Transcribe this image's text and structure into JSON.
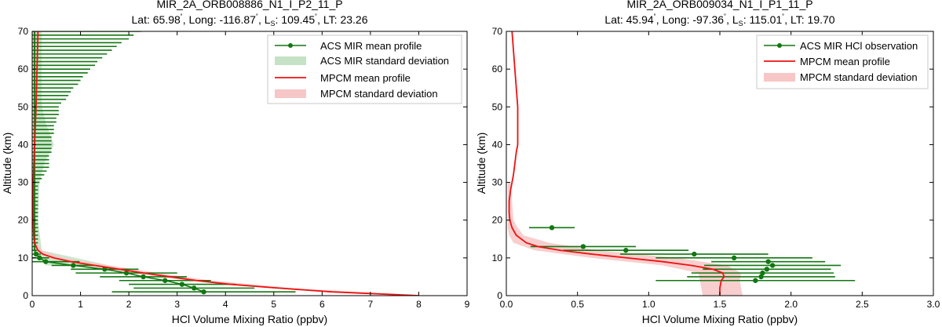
{
  "colors": {
    "obs": "#117711",
    "obs_band": "#c6e2c6",
    "model": "#ee1111",
    "model_band": "#f7c6c6"
  },
  "chart_data": [
    {
      "type": "line",
      "title": "MIR_2A_ORB008886_N1_I_P2_11_P",
      "subtitle": {
        "lat": "Lat: 65.98",
        "long": ", Long: -116.87",
        "ls_label": ", L",
        "ls_sub": "S",
        "ls_value": ": 109.45",
        "lt": ", LT: 23.26"
      },
      "xlabel": "HCl Volume Mixing Ratio (ppbv)",
      "ylabel": "Altitude (km)",
      "xlim": [
        0,
        9
      ],
      "ylim": [
        0,
        70
      ],
      "xticks": [
        "0",
        "1",
        "2",
        "3",
        "4",
        "5",
        "6",
        "7",
        "8",
        "9"
      ],
      "yticks": [
        "0",
        "10",
        "20",
        "30",
        "40",
        "50",
        "60",
        "70"
      ],
      "legend": {
        "position": "top-right",
        "entries": [
          "ACS MIR mean profile",
          "ACS MIR standard deviation",
          "MPCM mean profile",
          "MPCM standard deviation"
        ]
      },
      "obs_points": [
        {
          "alt": 1,
          "x": 3.55,
          "xerr": 1.9
        },
        {
          "alt": 2,
          "x": 3.35,
          "xerr": 1.25
        },
        {
          "alt": 3,
          "x": 3.1,
          "xerr": 1.1
        },
        {
          "alt": 4,
          "x": 2.75,
          "xerr": 0.95
        },
        {
          "alt": 5,
          "x": 2.3,
          "xerr": 0.9
        },
        {
          "alt": 6,
          "x": 1.95,
          "xerr": 1.05
        },
        {
          "alt": 7,
          "x": 1.5,
          "xerr": 0.7
        },
        {
          "alt": 8,
          "x": 0.85,
          "xerr": 0.45
        },
        {
          "alt": 9,
          "x": 0.28,
          "xerr": 0.7
        },
        {
          "alt": 10,
          "x": 0.15,
          "xerr": 0.2
        },
        {
          "alt": 11,
          "x": 0.08,
          "xerr": 0.1
        }
      ],
      "upper_errorbars": {
        "alts": [
          12,
          13,
          14,
          15,
          16,
          17,
          18,
          19,
          20,
          21,
          22,
          23,
          24,
          25,
          26,
          27,
          28,
          29,
          30,
          31,
          32,
          33,
          34,
          35,
          36,
          37,
          38,
          39,
          40,
          41,
          42,
          43,
          44,
          45,
          46,
          47,
          48,
          49,
          50,
          51,
          52,
          53,
          54,
          55,
          56,
          57,
          58,
          59,
          60,
          61,
          62,
          63,
          64,
          65,
          66,
          67,
          68,
          69,
          70
        ],
        "center": 0.05,
        "right": [
          0.1,
          0.1,
          0.12,
          0.12,
          0.12,
          0.12,
          0.12,
          0.12,
          0.12,
          0.12,
          0.12,
          0.12,
          0.12,
          0.12,
          0.12,
          0.12,
          0.12,
          0.12,
          0.15,
          0.2,
          0.25,
          0.3,
          0.35,
          0.35,
          0.35,
          0.35,
          0.4,
          0.4,
          0.4,
          0.4,
          0.4,
          0.45,
          0.45,
          0.45,
          0.5,
          0.5,
          0.55,
          0.55,
          0.55,
          0.6,
          0.7,
          0.75,
          0.8,
          0.85,
          0.95,
          1.0,
          1.05,
          1.15,
          1.2,
          1.3,
          1.35,
          1.45,
          1.55,
          1.65,
          1.75,
          1.85,
          2.0,
          2.1,
          2.25
        ]
      },
      "obs_band": {
        "alts": [
          8,
          12,
          20,
          30,
          35,
          40,
          45,
          50,
          55,
          60,
          65,
          70
        ],
        "low": [
          0.3,
          0.0,
          0.0,
          0.0,
          0.0,
          0.0,
          0.0,
          0.0,
          0.0,
          0.0,
          0.0,
          0.0
        ],
        "high": [
          1.6,
          0.2,
          0.12,
          0.15,
          0.25,
          0.45,
          0.3,
          0.2,
          0.2,
          0.2,
          0.2,
          0.2
        ]
      },
      "model_mean": {
        "alts": [
          0,
          1,
          2,
          3,
          4,
          5,
          6,
          7,
          8,
          9,
          10,
          11,
          12,
          13,
          14,
          16,
          20,
          30,
          40,
          50,
          60,
          70
        ],
        "x": [
          8.0,
          6.2,
          5.1,
          4.1,
          3.4,
          2.85,
          2.3,
          1.8,
          1.3,
          0.8,
          0.45,
          0.22,
          0.12,
          0.08,
          0.05,
          0.03,
          0.02,
          0.02,
          0.05,
          0.08,
          0.1,
          0.12
        ]
      },
      "model_band": {
        "alts": [
          0,
          2,
          4,
          6,
          8,
          10,
          12,
          14,
          20,
          30,
          70
        ],
        "low": [
          7.9,
          4.9,
          3.2,
          2.1,
          1.1,
          0.3,
          0.08,
          0.02,
          0.0,
          0.0,
          0.0
        ],
        "high": [
          8.0,
          5.4,
          3.7,
          2.6,
          1.6,
          0.65,
          0.2,
          0.08,
          0.04,
          0.04,
          0.14
        ]
      }
    },
    {
      "type": "line",
      "title": "MIR_2A_ORB009034_N1_I_P1_11_P",
      "subtitle": {
        "lat": "Lat: 45.94",
        "long": ", Long: -97.36",
        "ls_label": ", L",
        "ls_sub": "S",
        "ls_value": ": 115.01",
        "lt": ", LT: 19.70"
      },
      "xlabel": "HCl Volume Mixing Ratio (ppbv)",
      "ylabel": "Altitude (km)",
      "xlim": [
        0,
        3
      ],
      "ylim": [
        0,
        70
      ],
      "xticks": [
        "0.0",
        "0.5",
        "1.0",
        "1.5",
        "2.0",
        "2.5",
        "3.0"
      ],
      "yticks": [
        "0",
        "10",
        "20",
        "30",
        "40",
        "50",
        "60",
        "70"
      ],
      "legend": {
        "position": "top-right",
        "entries": [
          "ACS MIR HCl observation",
          "MPCM mean profile",
          "MPCM standard deviation"
        ]
      },
      "obs_points": [
        {
          "alt": 18,
          "x": 0.32,
          "xerr": 0.16
        },
        {
          "alt": 13,
          "x": 0.54,
          "xerr": 0.37
        },
        {
          "alt": 12,
          "x": 0.84,
          "xerr": 0.44
        },
        {
          "alt": 11,
          "x": 1.32,
          "xerr": 0.52
        },
        {
          "alt": 10,
          "x": 1.6,
          "xerr": 0.55
        },
        {
          "alt": 9,
          "x": 1.84,
          "xerr": 0.4
        },
        {
          "alt": 8,
          "x": 1.87,
          "xerr": 0.48
        },
        {
          "alt": 7,
          "x": 1.83,
          "xerr": 0.45
        },
        {
          "alt": 6,
          "x": 1.8,
          "xerr": 0.5
        },
        {
          "alt": 5,
          "x": 1.79,
          "xerr": 0.52
        },
        {
          "alt": 4,
          "x": 1.75,
          "xerr": 0.7
        }
      ],
      "model_mean": {
        "alts": [
          0,
          2,
          4,
          5,
          6,
          7,
          8,
          9,
          10,
          11,
          12,
          13,
          14,
          16,
          18,
          20,
          22,
          25,
          28,
          32,
          35,
          38,
          40,
          45,
          50,
          55,
          60,
          65,
          70
        ],
        "x": [
          1.5,
          1.5,
          1.51,
          1.53,
          1.52,
          1.45,
          1.3,
          1.1,
          0.85,
          0.6,
          0.38,
          0.22,
          0.14,
          0.07,
          0.04,
          0.025,
          0.02,
          0.02,
          0.03,
          0.05,
          0.06,
          0.07,
          0.08,
          0.08,
          0.08,
          0.07,
          0.06,
          0.05,
          0.04
        ]
      },
      "model_band": {
        "alts": [
          0,
          2,
          4,
          6,
          8,
          10,
          12,
          14,
          16,
          18,
          20,
          25,
          30
        ],
        "low": [
          1.38,
          1.37,
          1.36,
          1.35,
          1.1,
          0.6,
          0.2,
          0.05,
          0.02,
          0.01,
          0.01,
          0.01,
          0.01
        ],
        "high": [
          1.66,
          1.65,
          1.64,
          1.65,
          1.55,
          1.2,
          0.65,
          0.3,
          0.12,
          0.08,
          0.05,
          0.04,
          0.03
        ]
      }
    }
  ]
}
